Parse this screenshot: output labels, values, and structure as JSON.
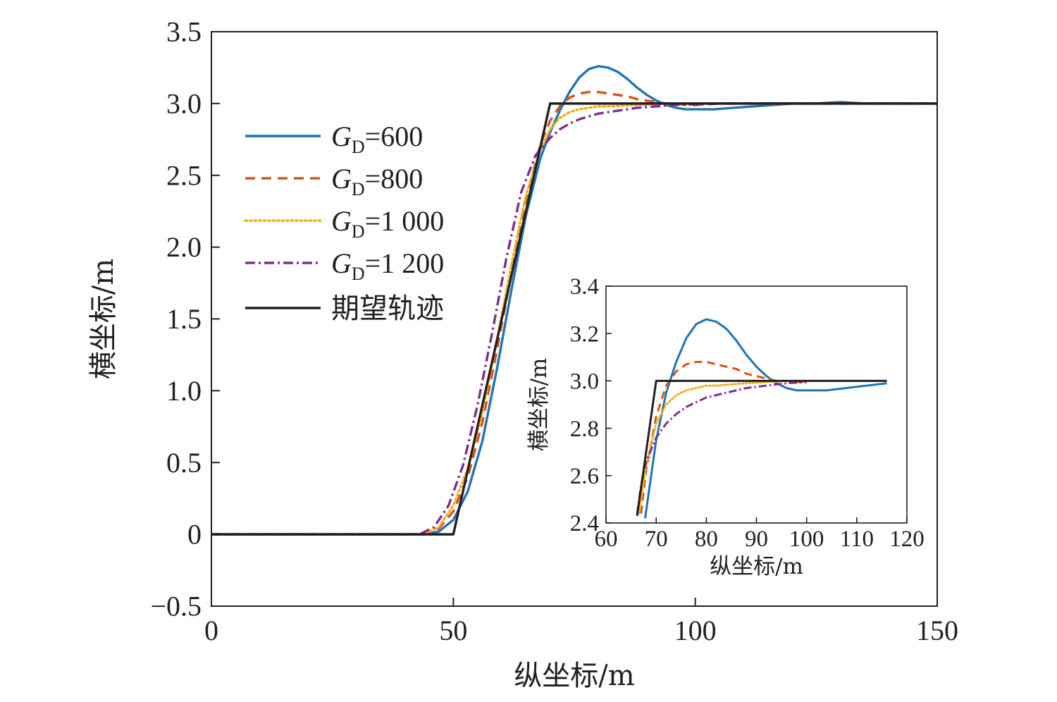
{
  "chart_data": [
    {
      "type": "line",
      "xlabel": "纵坐标/m",
      "ylabel": "横坐标/m",
      "xlim": [
        0,
        150
      ],
      "ylim": [
        -0.5,
        3.5
      ],
      "xticks": [
        0,
        50,
        100,
        150
      ],
      "xtick_labels": [
        "0",
        "50",
        "100",
        "150"
      ],
      "yticks": [
        -0.5,
        0,
        0.5,
        1.0,
        1.5,
        2.0,
        2.5,
        3.0,
        3.5
      ],
      "ytick_labels": [
        "−0.5",
        "0",
        "0.5",
        "1.0",
        "1.5",
        "2.0",
        "2.5",
        "3.0",
        "3.5"
      ],
      "grid": false,
      "legend_position": "upper-left",
      "series": [
        {
          "name": "=600",
          "legend_prefix": "G",
          "legend_sub": "D",
          "color": "#1f74b8",
          "dash": "solid",
          "x": [
            0,
            44,
            47,
            50,
            53,
            56,
            59,
            62,
            65,
            68,
            70,
            72,
            74,
            76,
            78,
            80,
            82,
            84,
            86,
            88,
            90,
            92,
            94,
            96,
            98,
            100,
            102,
            104,
            108,
            112,
            116,
            120,
            125,
            130,
            135,
            150
          ],
          "y": [
            0,
            0,
            0.02,
            0.1,
            0.3,
            0.65,
            1.15,
            1.7,
            2.22,
            2.62,
            2.8,
            2.95,
            3.08,
            3.18,
            3.24,
            3.26,
            3.25,
            3.22,
            3.17,
            3.11,
            3.06,
            3.02,
            2.99,
            2.97,
            2.96,
            2.96,
            2.96,
            2.96,
            2.97,
            2.98,
            2.99,
            3.0,
            3.0,
            3.01,
            3.0,
            3.0
          ]
        },
        {
          "name": "=800",
          "legend_prefix": "G",
          "legend_sub": "D",
          "color": "#d95319",
          "dash": "dashed",
          "x": [
            0,
            44,
            47,
            50,
            53,
            56,
            59,
            62,
            65,
            68,
            70,
            72,
            74,
            76,
            78,
            80,
            82,
            84,
            86,
            88,
            90,
            92,
            94,
            96,
            98,
            100,
            105,
            110,
            150
          ],
          "y": [
            0,
            0,
            0.04,
            0.16,
            0.4,
            0.78,
            1.28,
            1.82,
            2.33,
            2.72,
            2.88,
            2.98,
            3.04,
            3.07,
            3.08,
            3.08,
            3.07,
            3.06,
            3.05,
            3.03,
            3.02,
            3.01,
            3.0,
            3.0,
            2.99,
            2.99,
            3.0,
            3.0,
            3.0
          ]
        },
        {
          "name": "=1 000",
          "legend_prefix": "G",
          "legend_sub": "D",
          "color": "#edb120",
          "dash": "dotted",
          "x": [
            0,
            44,
            47,
            50,
            53,
            56,
            59,
            62,
            65,
            68,
            70,
            72,
            74,
            76,
            78,
            80,
            82,
            85,
            88,
            92,
            96,
            100,
            150
          ],
          "y": [
            0,
            0,
            0.05,
            0.2,
            0.46,
            0.85,
            1.35,
            1.88,
            2.36,
            2.68,
            2.82,
            2.9,
            2.94,
            2.96,
            2.97,
            2.98,
            2.98,
            2.985,
            2.99,
            2.995,
            3.0,
            3.0,
            3.0
          ]
        },
        {
          "name": "=1 200",
          "legend_prefix": "G",
          "legend_sub": "D",
          "color": "#7e2f8e",
          "dash": "dashdot",
          "x": [
            0,
            43,
            46,
            49,
            52,
            55,
            58,
            61,
            64,
            67,
            70,
            72,
            74,
            76,
            78,
            80,
            82,
            85,
            88,
            92,
            96,
            100,
            106,
            115,
            150
          ],
          "y": [
            0,
            0,
            0.05,
            0.2,
            0.48,
            0.9,
            1.4,
            1.93,
            2.38,
            2.64,
            2.76,
            2.82,
            2.86,
            2.89,
            2.91,
            2.93,
            2.94,
            2.955,
            2.97,
            2.98,
            2.99,
            2.995,
            3.0,
            3.0,
            3.0
          ]
        },
        {
          "name": "期望轨迹",
          "color": "#231f20",
          "dash": "solid",
          "x": [
            0,
            50,
            70,
            150
          ],
          "y": [
            0,
            0,
            3.0,
            3.0
          ]
        }
      ]
    },
    {
      "type": "line",
      "xlabel": "纵坐标/m",
      "ylabel": "横坐标/m",
      "xlim": [
        60,
        120
      ],
      "ylim": [
        2.4,
        3.4
      ],
      "xticks": [
        60,
        70,
        80,
        90,
        100,
        110,
        120
      ],
      "xtick_labels": [
        "60",
        "70",
        "80",
        "90",
        "100",
        "110",
        "120"
      ],
      "yticks": [
        2.4,
        2.6,
        2.8,
        3.0,
        3.2,
        3.4
      ],
      "ytick_labels": [
        "2.4",
        "2.6",
        "2.8",
        "3.0",
        "3.2",
        "3.4"
      ],
      "grid": false,
      "series": [
        {
          "color": "#1f74b8",
          "dash": "solid",
          "x": [
            67.8,
            69,
            70,
            72,
            74,
            76,
            78,
            80,
            82,
            84,
            86,
            88,
            90,
            92,
            94,
            96,
            98,
            100,
            102,
            104,
            106,
            108,
            110,
            112,
            114,
            116
          ],
          "y": [
            2.42,
            2.6,
            2.75,
            2.95,
            3.08,
            3.18,
            3.24,
            3.26,
            3.25,
            3.22,
            3.17,
            3.11,
            3.06,
            3.02,
            2.99,
            2.97,
            2.96,
            2.96,
            2.96,
            2.96,
            2.965,
            2.97,
            2.975,
            2.98,
            2.985,
            2.99
          ]
        },
        {
          "color": "#d95319",
          "dash": "dashed",
          "x": [
            67,
            68,
            70,
            72,
            74,
            76,
            78,
            80,
            82,
            84,
            86,
            88,
            90,
            92,
            94,
            96,
            98,
            100
          ],
          "y": [
            2.44,
            2.62,
            2.85,
            2.98,
            3.04,
            3.07,
            3.08,
            3.08,
            3.07,
            3.06,
            3.05,
            3.03,
            3.02,
            3.01,
            3.0,
            3.0,
            2.995,
            2.995
          ]
        },
        {
          "color": "#edb120",
          "dash": "dotted",
          "x": [
            66.6,
            68,
            70,
            72,
            74,
            76,
            78,
            80,
            82,
            85,
            88,
            92,
            96
          ],
          "y": [
            2.44,
            2.64,
            2.82,
            2.9,
            2.94,
            2.96,
            2.97,
            2.98,
            2.98,
            2.985,
            2.99,
            2.995,
            3.0
          ]
        },
        {
          "color": "#7e2f8e",
          "dash": "dashdot",
          "x": [
            66.2,
            67,
            68,
            70,
            72,
            74,
            76,
            78,
            80,
            82,
            85,
            88,
            92,
            96,
            100
          ],
          "y": [
            2.44,
            2.56,
            2.66,
            2.76,
            2.82,
            2.86,
            2.89,
            2.91,
            2.93,
            2.94,
            2.955,
            2.97,
            2.98,
            2.99,
            2.995
          ]
        },
        {
          "color": "#231f20",
          "dash": "solid",
          "x": [
            66.2,
            70,
            116
          ],
          "y": [
            2.43,
            3.0,
            3.0
          ]
        }
      ]
    }
  ]
}
